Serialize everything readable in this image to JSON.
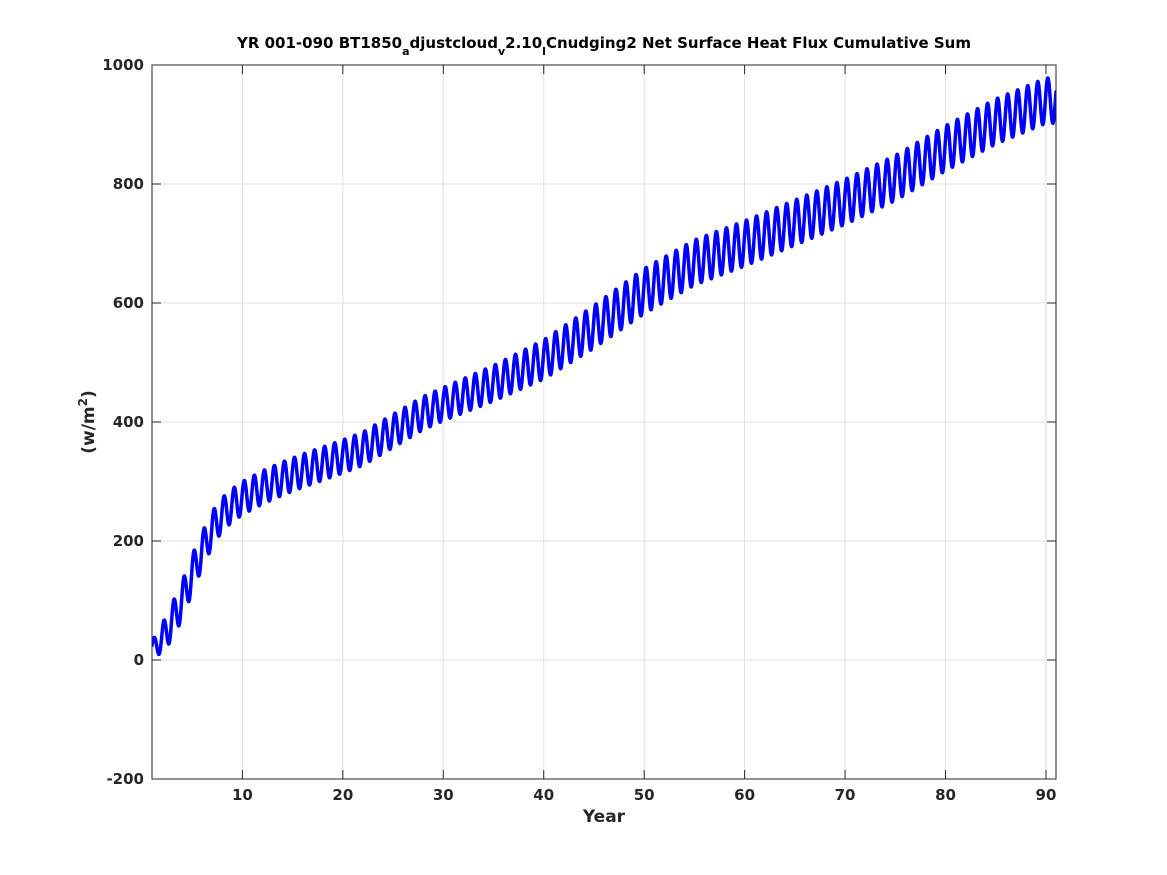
{
  "chart_data": {
    "type": "line",
    "title": {
      "part1": "YR 001-090 BT1850",
      "sub1": "a",
      "part2": "djustcloud",
      "sub2": "v",
      "part3": "2.10",
      "sub3": "l",
      "part4": "Cnudging2 Net Surface Heat Flux  Cumulative Sum"
    },
    "xlabel": "Year",
    "ylabel": {
      "prefix": "(w/m",
      "sup": "2",
      "suffix": ")"
    },
    "xlim": [
      1,
      91
    ],
    "ylim": [
      -200,
      1000
    ],
    "xticks": [
      10,
      20,
      30,
      40,
      50,
      60,
      70,
      80,
      90
    ],
    "xtick_labels": [
      "10",
      "20",
      "30",
      "40",
      "50",
      "60",
      "70",
      "80",
      "90"
    ],
    "yticks": [
      -200,
      0,
      200,
      400,
      600,
      800,
      1000
    ],
    "ytick_labels": [
      "-200",
      "0",
      "200",
      "400",
      "600",
      "800",
      "1000"
    ],
    "grid": true,
    "series": [
      {
        "color": "#0000ff",
        "x": [
          1,
          2,
          3,
          4,
          5,
          6,
          7,
          8,
          9,
          10,
          12,
          14,
          16,
          18,
          20,
          22,
          24,
          26,
          28,
          30,
          35,
          40,
          45,
          50,
          55,
          60,
          65,
          70,
          75,
          80,
          85,
          90,
          91
        ],
        "y": [
          20,
          35,
          65,
          100,
          145,
          185,
          220,
          245,
          260,
          272,
          290,
          305,
          318,
          330,
          342,
          355,
          375,
          395,
          415,
          430,
          465,
          505,
          560,
          620,
          668,
          700,
          735,
          770,
          810,
          860,
          905,
          940,
          940
        ],
        "amplitude": [
          12,
          25,
          30,
          32,
          32,
          30,
          30,
          28,
          28,
          28,
          28,
          28,
          28,
          28,
          28,
          28,
          28,
          28,
          28,
          28,
          30,
          33,
          36,
          38,
          38,
          38,
          38,
          38,
          38,
          38,
          38,
          38,
          38
        ],
        "cycles_per_year": 1,
        "line_width": 3.5
      }
    ],
    "colors": {
      "line": "#0000ff",
      "grid": "#e0e0e0",
      "axes": "#262626"
    }
  }
}
